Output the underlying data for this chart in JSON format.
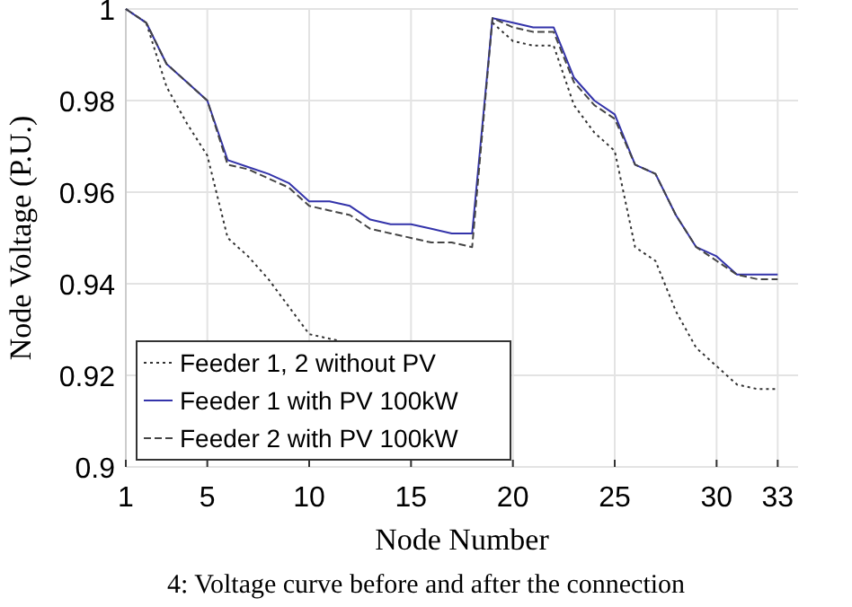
{
  "chart_data": {
    "type": "line",
    "xlabel": "Node Number",
    "ylabel": "Node Voltage (P.U.)",
    "x": [
      1,
      2,
      3,
      4,
      5,
      6,
      7,
      8,
      9,
      10,
      11,
      12,
      13,
      14,
      15,
      16,
      17,
      18,
      19,
      20,
      21,
      22,
      23,
      24,
      25,
      26,
      27,
      28,
      29,
      30,
      31,
      32,
      33
    ],
    "series": [
      {
        "name": "Feeder 1, 2 without PV",
        "color": "#333333",
        "line_style": "dotted",
        "values": [
          1,
          0.997,
          0.983,
          0.975,
          0.968,
          0.95,
          0.946,
          0.941,
          0.935,
          0.929,
          0.928,
          0.927,
          null,
          null,
          null,
          null,
          null,
          null,
          0.997,
          0.993,
          0.992,
          0.992,
          0.979,
          0.973,
          0.969,
          0.948,
          0.945,
          0.934,
          0.926,
          0.922,
          0.918,
          0.917,
          0.917
        ]
      },
      {
        "name": "Feeder 1 with PV 100kW",
        "color": "#3333aa",
        "line_style": "solid",
        "values": [
          1,
          0.997,
          0.988,
          0.984,
          0.98,
          0.967,
          0.9655,
          0.964,
          0.962,
          0.958,
          0.958,
          0.957,
          0.954,
          0.953,
          0.953,
          0.952,
          0.951,
          0.951,
          0.998,
          0.997,
          0.996,
          0.996,
          0.985,
          0.98,
          0.977,
          0.966,
          0.964,
          0.955,
          0.948,
          0.946,
          0.942,
          0.942,
          0.942
        ]
      },
      {
        "name": "Feeder 2 with PV 100kW",
        "color": "#444444",
        "line_style": "dashed",
        "values": [
          1,
          0.997,
          0.988,
          0.984,
          0.98,
          0.966,
          0.965,
          0.963,
          0.961,
          0.957,
          0.956,
          0.955,
          0.952,
          0.951,
          0.95,
          0.949,
          0.949,
          0.948,
          0.998,
          0.996,
          0.995,
          0.995,
          0.984,
          0.979,
          0.976,
          0.966,
          0.964,
          0.955,
          0.948,
          0.945,
          0.942,
          0.941,
          0.941
        ]
      }
    ],
    "xlim": [
      1,
      34
    ],
    "xticks": [
      1,
      5,
      10,
      15,
      20,
      25,
      30,
      33
    ],
    "ylim": [
      0.9,
      1
    ],
    "yticks": [
      0.9,
      0.92,
      0.94,
      0.96,
      0.98,
      1
    ],
    "grid": true,
    "legend": "bottom left",
    "annotations": [
      "4: Voltage curve before and after the connection"
    ]
  }
}
